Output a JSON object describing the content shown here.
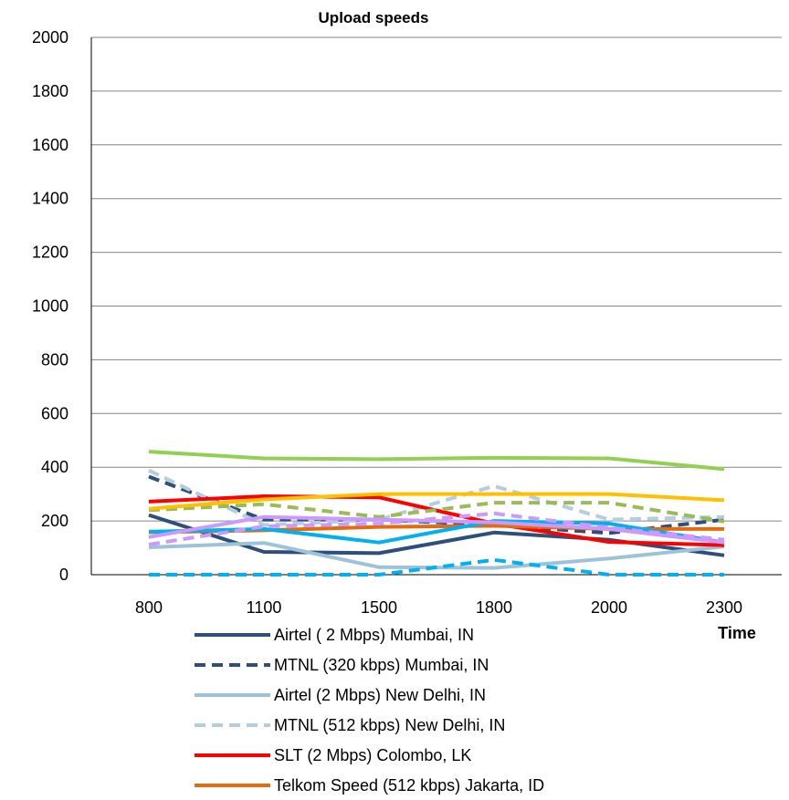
{
  "chart_data": {
    "type": "line",
    "title": "Upload speeds",
    "xlabel": "Time",
    "ylabel": "",
    "categories": [
      "800",
      "1100",
      "1500",
      "1800",
      "2000",
      "2300"
    ],
    "yticks": [
      "0",
      "200",
      "400",
      "600",
      "800",
      "1000",
      "1200",
      "1400",
      "1600",
      "1800",
      "2000"
    ],
    "ylim": [
      0,
      2000
    ],
    "grid": "horizontal",
    "legend_position": "bottom",
    "series": [
      {
        "name": "Airtel ( 2 Mbps) Mumbai, IN",
        "color": "#2E4F7C",
        "dash": "solid",
        "in_legend": true,
        "values": [
          222,
          85,
          80,
          157,
          130,
          72
        ]
      },
      {
        "name": "MTNL (320 kbps) Mumbai, IN",
        "color": "#2E4F7C",
        "dash": "dashed",
        "in_legend": true,
        "values": [
          365,
          205,
          205,
          185,
          155,
          205
        ]
      },
      {
        "name": "Airtel (2 Mbps) New Delhi, IN",
        "color": "#9DC3DA",
        "dash": "solid",
        "in_legend": true,
        "values": [
          102,
          118,
          28,
          25,
          60,
          105
        ]
      },
      {
        "name": "MTNL (512 kbps) New Delhi, IN",
        "color": "#B3CEE0",
        "dash": "dashed",
        "in_legend": true,
        "values": [
          388,
          185,
          205,
          330,
          205,
          215
        ]
      },
      {
        "name": "SLT (2 Mbps) Colombo, LK",
        "color": "#FF0000",
        "dash": "solid",
        "in_legend": true,
        "values": [
          272,
          292,
          288,
          190,
          122,
          110
        ]
      },
      {
        "name": "Telkom Speed (512 kbps) Jakarta, ID",
        "color": "#E46C0A",
        "dash": "solid",
        "in_legend": true,
        "values": [
          158,
          165,
          178,
          182,
          170,
          170
        ]
      },
      {
        "name": "",
        "color": "#92D050",
        "dash": "solid",
        "in_legend": false,
        "values": [
          458,
          433,
          430,
          435,
          433,
          393
        ]
      },
      {
        "name": "",
        "color": "#9BBB59",
        "dash": "dashed",
        "in_legend": false,
        "values": [
          240,
          262,
          215,
          268,
          268,
          198
        ]
      },
      {
        "name": "",
        "color": "#FFC000",
        "dash": "solid",
        "in_legend": false,
        "values": [
          245,
          280,
          300,
          300,
          300,
          277
        ]
      },
      {
        "name": "",
        "color": "#00B0F0",
        "dash": "solid",
        "in_legend": false,
        "values": [
          160,
          170,
          120,
          200,
          190,
          120
        ]
      },
      {
        "name": "",
        "color": "#00B0F0",
        "dash": "dashed",
        "in_legend": false,
        "values": [
          0,
          0,
          0,
          55,
          0,
          0
        ]
      },
      {
        "name": "",
        "color": "#CC99FF",
        "dash": "solid",
        "in_legend": false,
        "values": [
          140,
          215,
          205,
          195,
          170,
          120
        ]
      },
      {
        "name": "",
        "color": "#CC99FF",
        "dash": "dashed",
        "in_legend": false,
        "values": [
          112,
          180,
          190,
          228,
          175,
          130
        ]
      }
    ]
  }
}
